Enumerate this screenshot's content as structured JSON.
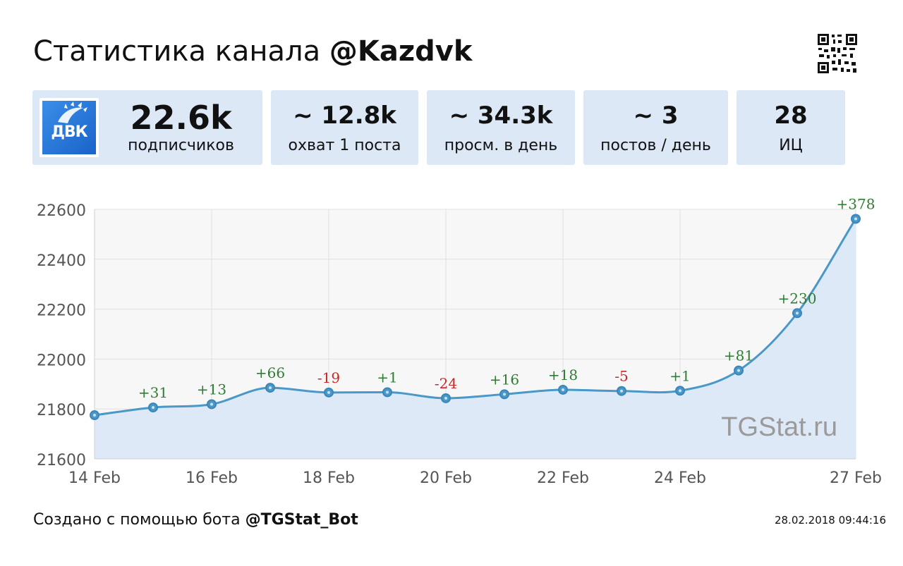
{
  "header": {
    "title_prefix": "Статистика канала ",
    "title_channel": "@Kazdvk"
  },
  "stats": {
    "logo_text": "ДВК",
    "subscribers": {
      "value": "22.6k",
      "label": "подписчиков"
    },
    "reach": {
      "value": "~ 12.8k",
      "label": "охват 1 поста"
    },
    "daily_views": {
      "value": "~ 34.3k",
      "label": "просм. в день"
    },
    "posts_per_day": {
      "value": "~ 3",
      "label": "постов / день"
    },
    "citation": {
      "value": "28",
      "label": "ИЦ"
    }
  },
  "chart_data": {
    "type": "area",
    "title": "",
    "xlabel": "",
    "ylabel": "",
    "x": [
      "14 Feb",
      "15 Feb",
      "16 Feb",
      "17 Feb",
      "18 Feb",
      "19 Feb",
      "20 Feb",
      "21 Feb",
      "22 Feb",
      "23 Feb",
      "24 Feb",
      "25 Feb",
      "26 Feb",
      "27 Feb"
    ],
    "x_tick_labels": [
      "14 Feb",
      "16 Feb",
      "18 Feb",
      "20 Feb",
      "22 Feb",
      "24 Feb",
      "27 Feb"
    ],
    "values": [
      21775,
      21806,
      21819,
      21885,
      21866,
      21867,
      21843,
      21859,
      21877,
      21872,
      21873,
      21954,
      22184,
      22562
    ],
    "point_labels": [
      "",
      "+31",
      "+13",
      "+66",
      "-19",
      "+1",
      "-24",
      "+16",
      "+18",
      "-5",
      "+1",
      "+81",
      "+230",
      "+378"
    ],
    "ylim": [
      21600,
      22600
    ],
    "y_ticks": [
      21600,
      21800,
      22000,
      22200,
      22400,
      22600
    ],
    "grid": true,
    "watermark": "TGStat.ru",
    "colors": {
      "line": "#4a98c8",
      "fill": "#dde9f7",
      "positive": "#2e7d32",
      "negative": "#c62828"
    }
  },
  "footer": {
    "created_prefix": "Создано с помощью бота ",
    "bot": "@TGStat_Bot",
    "timestamp": "28.02.2018 09:44:16"
  }
}
